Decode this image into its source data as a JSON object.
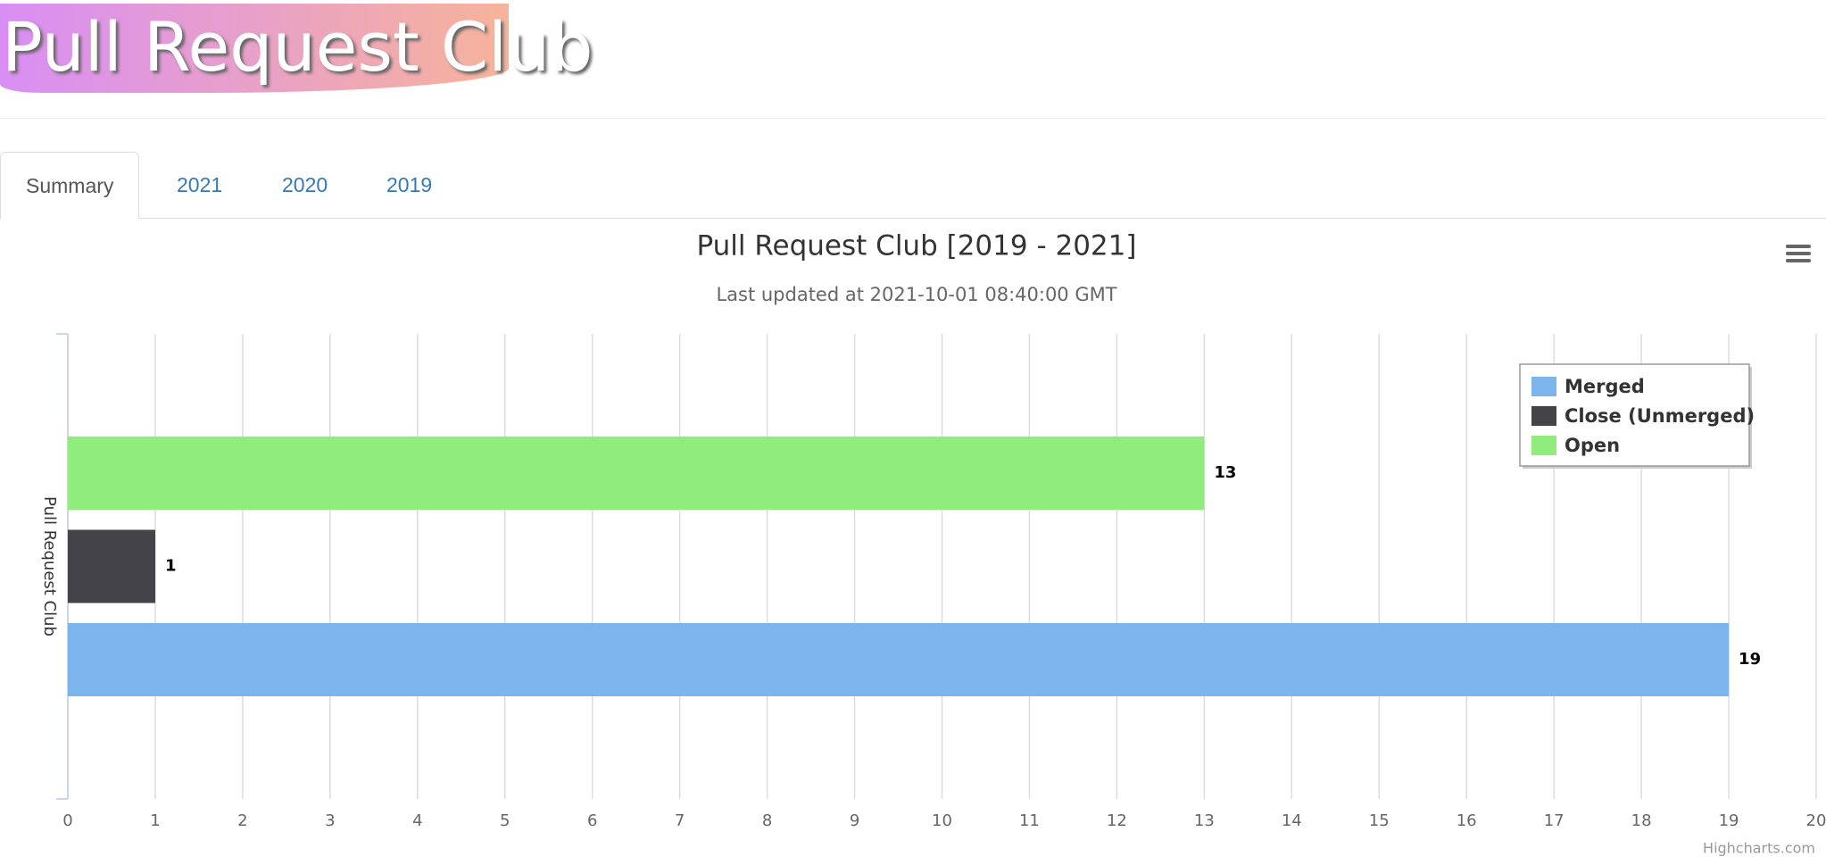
{
  "header": {
    "logo": "Pull Request Club"
  },
  "tabs": [
    "Summary",
    "2021",
    "2020",
    "2019"
  ],
  "chart_data": {
    "type": "bar",
    "title": "Pull Request Club [2019 - 2021]",
    "subtitle": "Last updated at 2021-10-01 08:40:00 GMT",
    "categories": [
      "Pull Request Club"
    ],
    "series": [
      {
        "name": "Merged",
        "color": "#7cb5ec",
        "values": [
          19
        ]
      },
      {
        "name": "Close (Unmerged)",
        "color": "#434348",
        "values": [
          1
        ]
      },
      {
        "name": "Open",
        "color": "#90ed7d",
        "values": [
          13
        ]
      }
    ],
    "ylim": [
      0,
      20
    ],
    "yticks": [
      0,
      1,
      2,
      3,
      4,
      5,
      6,
      7,
      8,
      9,
      10,
      11,
      12,
      13,
      14,
      15,
      16,
      17,
      18,
      19,
      20
    ],
    "grid": true,
    "legend": "top-right",
    "credit": "Highcharts.com"
  }
}
